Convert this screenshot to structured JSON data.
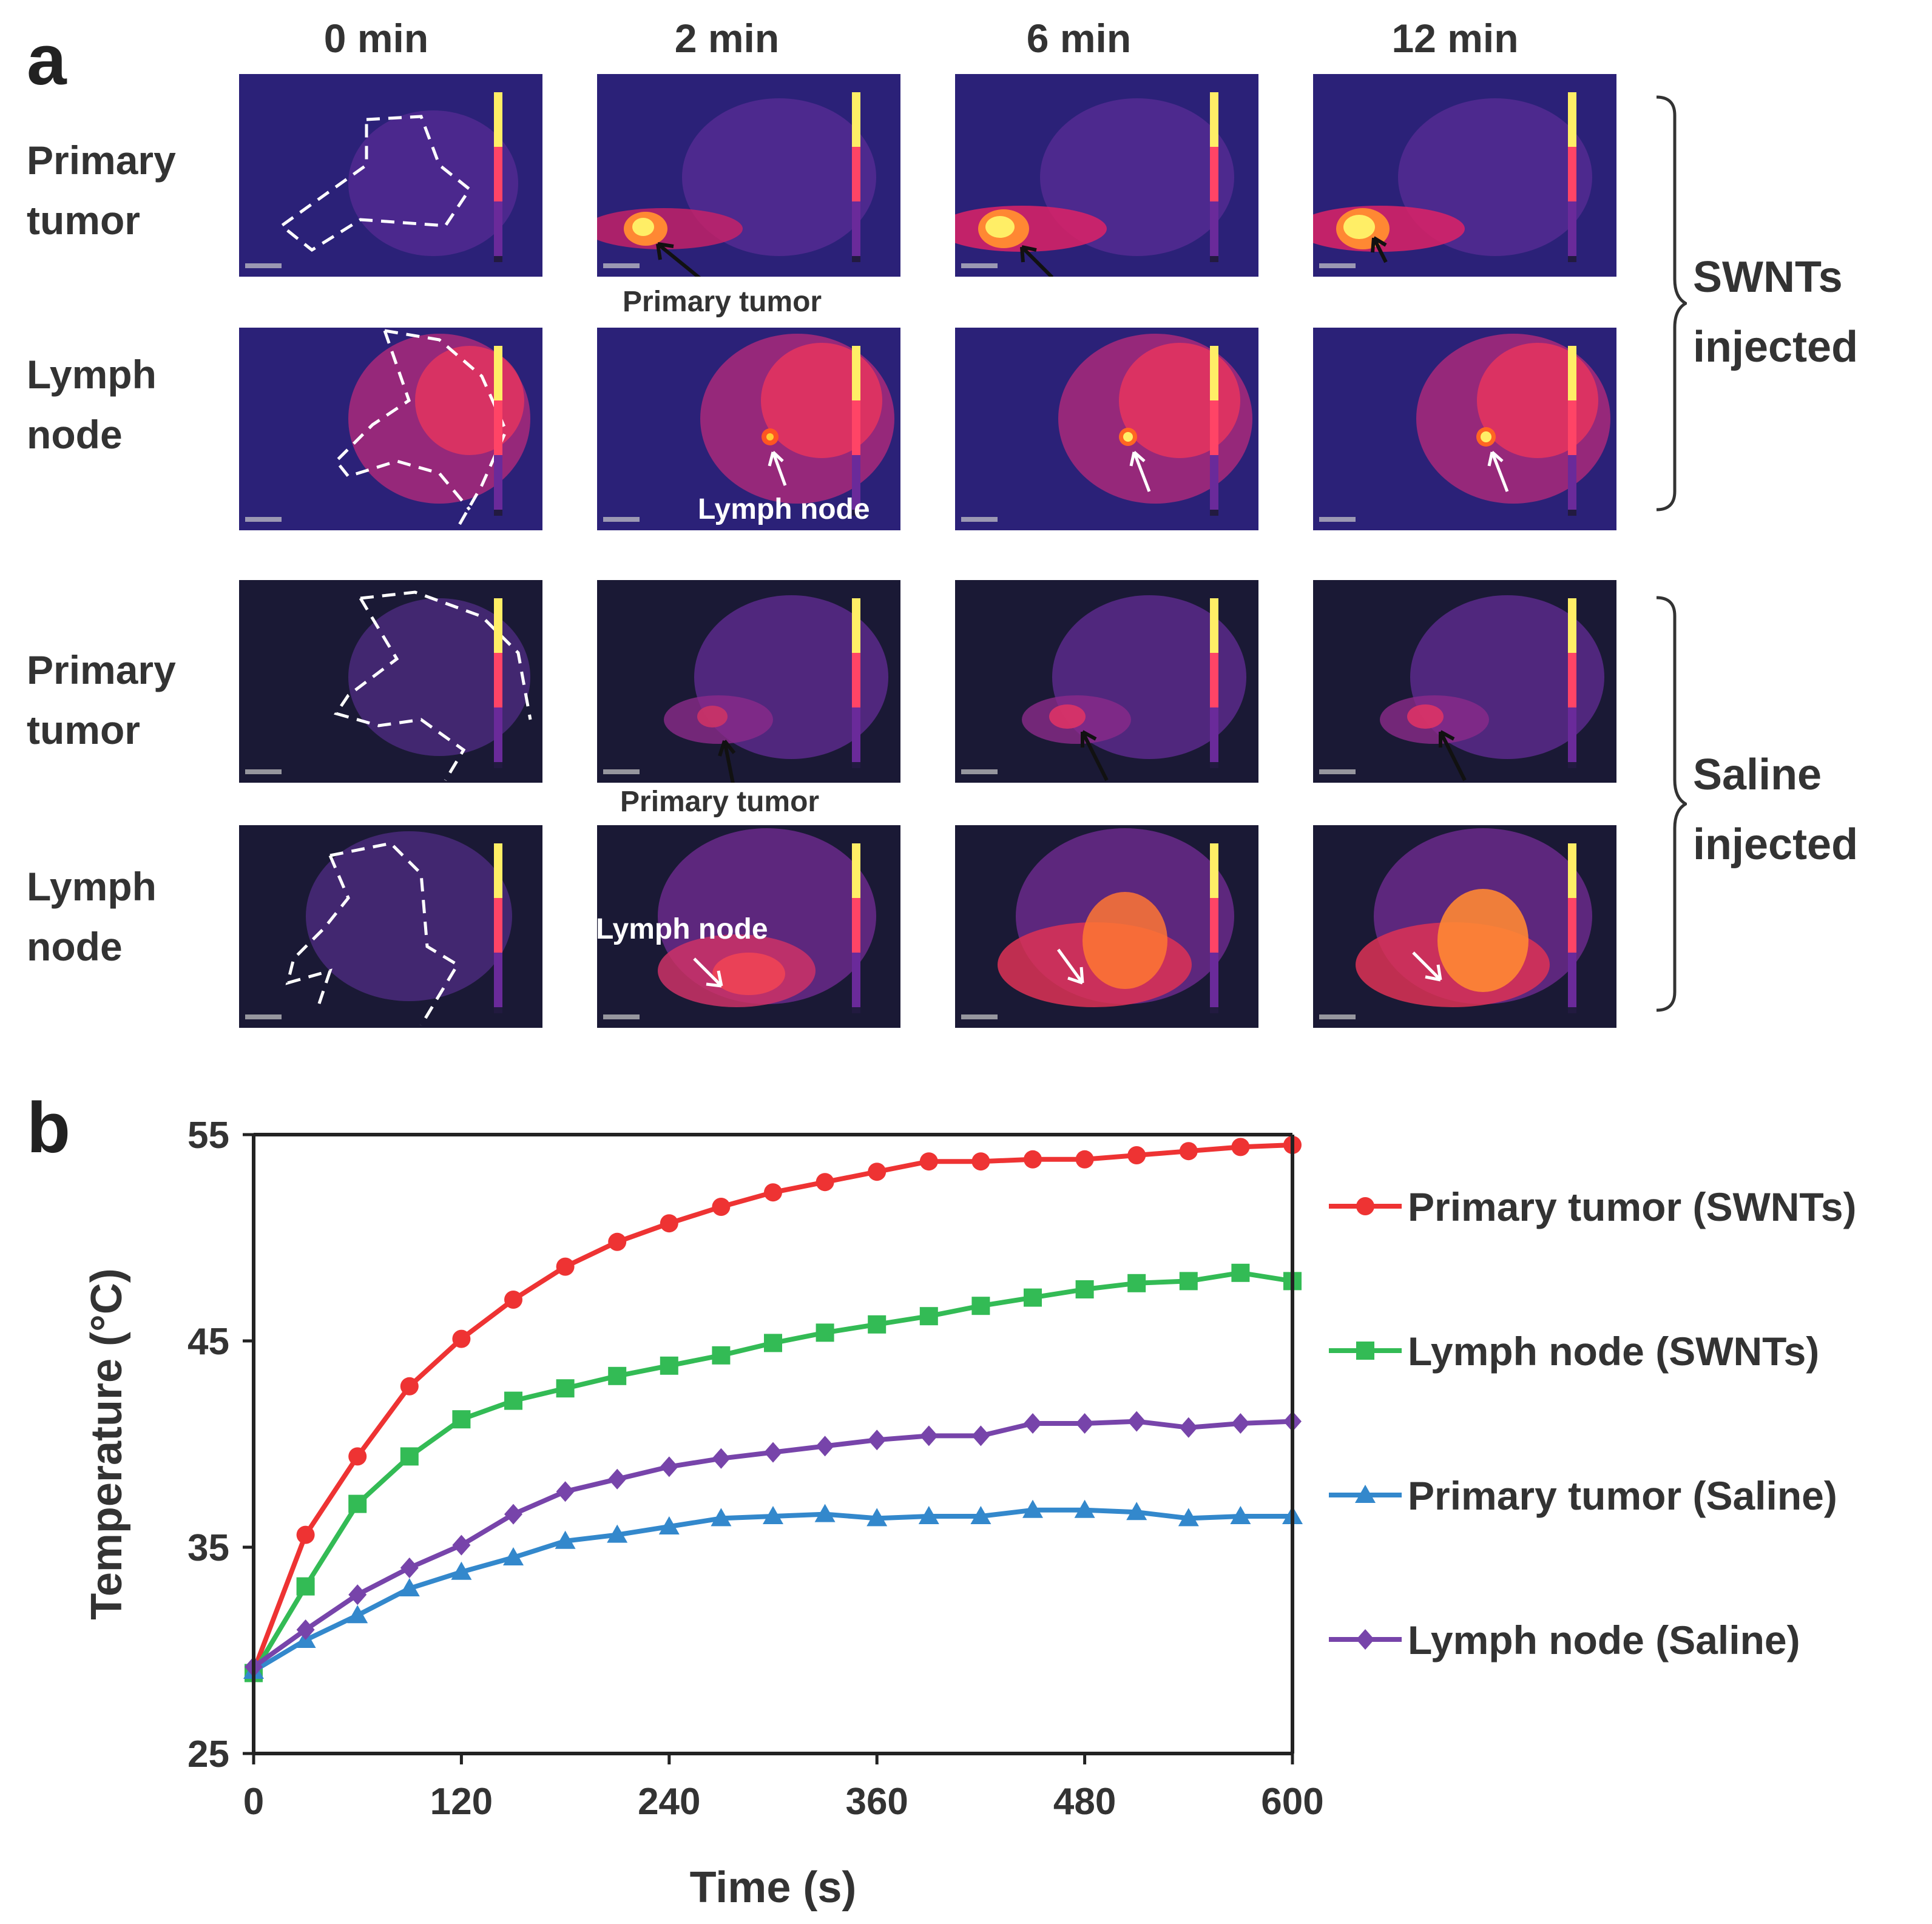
{
  "panel_a": {
    "letter": "a",
    "columns": [
      "0 min",
      "2 min",
      "6 min",
      "12 min"
    ],
    "rows": [
      {
        "label_line1": "Primary",
        "label_line2": "tumor"
      },
      {
        "label_line1": "Lymph",
        "label_line2": "node"
      },
      {
        "label_line1": "Primary",
        "label_line2": "tumor"
      },
      {
        "label_line1": "Lymph",
        "label_line2": "node"
      }
    ],
    "groups": [
      {
        "line1": "SWNTs",
        "line2": "injected"
      },
      {
        "line1": "Saline",
        "line2": "injected"
      }
    ],
    "callouts": {
      "swnt_primary_tumor": "Primary tumor",
      "swnt_lymph_node": "Lymph node",
      "saline_primary_tumor": "Primary tumor",
      "saline_lymph_node": "Lymph node"
    },
    "colors": {
      "swnt_background": "#2b2178",
      "saline_background": "#1a1935",
      "hot": "#ffee66",
      "warm": "#ff4466",
      "tissue": "#8a3aa8"
    }
  },
  "panel_b": {
    "letter": "b"
  },
  "chart_data": {
    "type": "line",
    "title": "",
    "xlabel": "Time (s)",
    "ylabel": "Temperature  (°C)",
    "xlim": [
      0,
      600
    ],
    "ylim": [
      25,
      55
    ],
    "xticks": [
      0,
      120,
      240,
      360,
      480,
      600
    ],
    "yticks": [
      25,
      35,
      45,
      55
    ],
    "grid": false,
    "legend_position": "right",
    "x": [
      0,
      30,
      60,
      90,
      120,
      150,
      180,
      210,
      240,
      270,
      300,
      330,
      360,
      390,
      420,
      450,
      480,
      510,
      540,
      570,
      600
    ],
    "series": [
      {
        "name": "Primary tumor (SWNTs)",
        "color": "#ee3333",
        "marker": "circle",
        "values": [
          29.0,
          35.6,
          39.4,
          42.8,
          45.1,
          47.0,
          48.6,
          49.8,
          50.7,
          51.5,
          52.2,
          52.7,
          53.2,
          53.7,
          53.7,
          53.8,
          53.8,
          54.0,
          54.2,
          54.4,
          54.5
        ]
      },
      {
        "name": "Lymph node (SWNTs)",
        "color": "#33bb55",
        "marker": "square",
        "values": [
          28.9,
          33.1,
          37.1,
          39.4,
          41.2,
          42.1,
          42.7,
          43.3,
          43.8,
          44.3,
          44.9,
          45.4,
          45.8,
          46.2,
          46.7,
          47.1,
          47.5,
          47.8,
          47.9,
          48.3,
          47.9
        ]
      },
      {
        "name": "Primary tumor (Saline)",
        "color": "#3388cc",
        "marker": "triangle",
        "values": [
          29.0,
          30.5,
          31.7,
          33.0,
          33.8,
          34.5,
          35.3,
          35.6,
          36.0,
          36.4,
          36.5,
          36.6,
          36.4,
          36.5,
          36.5,
          36.8,
          36.8,
          36.7,
          36.4,
          36.5,
          36.5
        ]
      },
      {
        "name": "Lymph node (Saline)",
        "color": "#7744aa",
        "marker": "diamond",
        "values": [
          29.2,
          31.0,
          32.7,
          34.0,
          35.1,
          36.6,
          37.7,
          38.3,
          38.9,
          39.3,
          39.6,
          39.9,
          40.2,
          40.4,
          40.4,
          41.0,
          41.0,
          41.1,
          40.8,
          41.0,
          41.1
        ]
      }
    ]
  }
}
